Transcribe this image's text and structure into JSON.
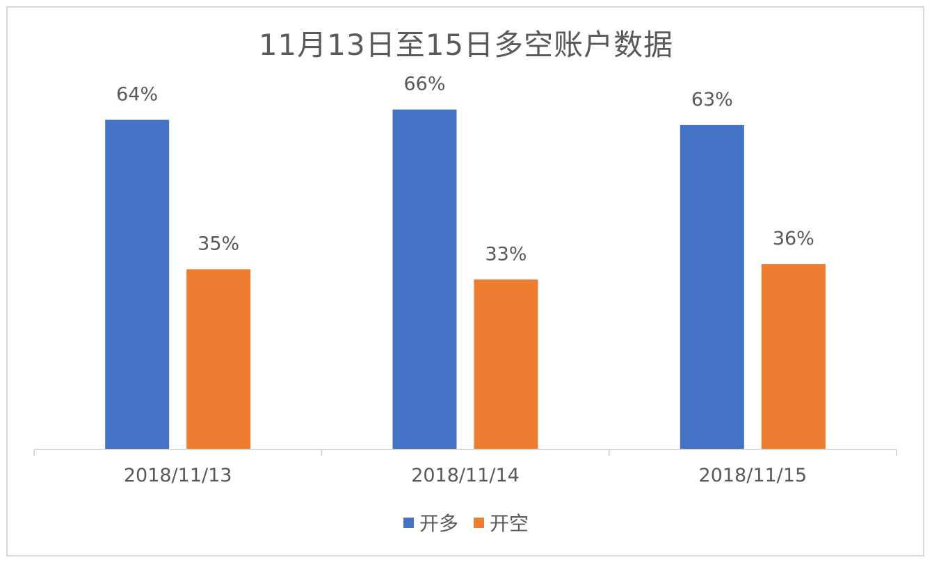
{
  "chart_data": {
    "type": "bar",
    "title": "11月13日至15日多空账户数据",
    "categories": [
      "2018/11/13",
      "2018/11/14",
      "2018/11/15"
    ],
    "series": [
      {
        "name": "开多",
        "color": "#4472c4",
        "values": [
          64,
          66,
          63
        ],
        "labels": [
          "64%",
          "66%",
          "63%"
        ]
      },
      {
        "name": "开空",
        "color": "#ed7d31",
        "values": [
          35,
          33,
          36
        ],
        "labels": [
          "35%",
          "33%",
          "36%"
        ]
      }
    ],
    "ylim": [
      0,
      70
    ],
    "grid": false,
    "legend_position": "bottom",
    "axis_color": "#d9d9d9",
    "text_color": "#595959"
  }
}
